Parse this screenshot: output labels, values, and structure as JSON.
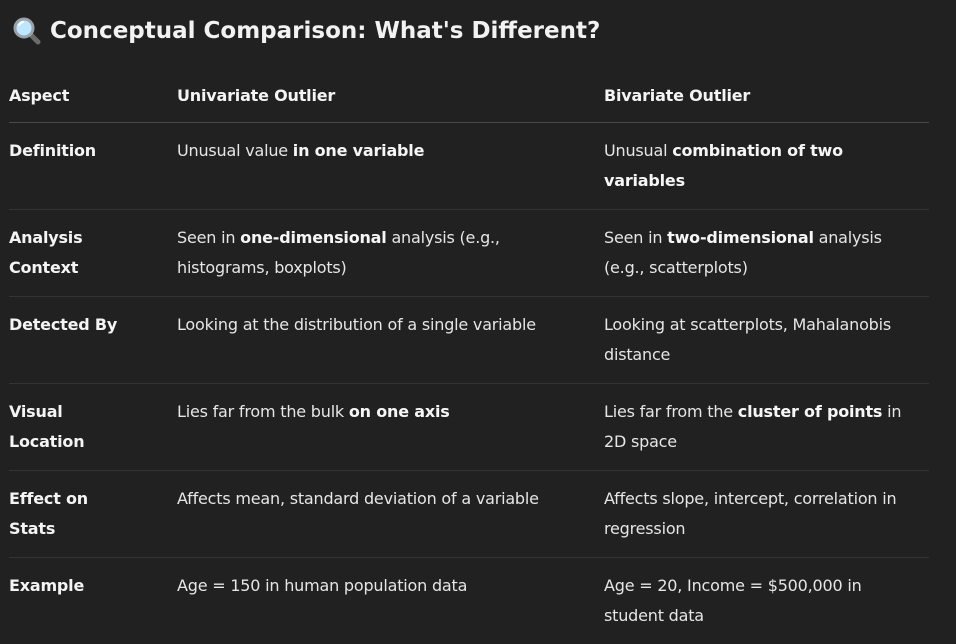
{
  "heading": {
    "icon": "magnifying-glass-icon",
    "title": "Conceptual Comparison: What's Different?"
  },
  "table": {
    "headers": [
      "Aspect",
      "Univariate Outlier",
      "Bivariate Outlier"
    ],
    "rows": [
      {
        "aspect": "Definition",
        "univariate": {
          "pre": "Unusual value ",
          "bold": "in one variable",
          "post": ""
        },
        "bivariate": {
          "pre": "Unusual ",
          "bold": "combination of two variables",
          "post": ""
        }
      },
      {
        "aspect": "Analysis Context",
        "univariate": {
          "pre": "Seen in ",
          "bold": "one-dimensional",
          "post": " analysis (e.g., histograms, boxplots)"
        },
        "bivariate": {
          "pre": "Seen in ",
          "bold": "two-dimensional",
          "post": " analysis (e.g., scatterplots)"
        }
      },
      {
        "aspect": "Detected By",
        "univariate": {
          "pre": "Looking at the distribution of a single variable",
          "bold": "",
          "post": ""
        },
        "bivariate": {
          "pre": "Looking at scatterplots, Mahalanobis distance",
          "bold": "",
          "post": ""
        }
      },
      {
        "aspect": "Visual Location",
        "univariate": {
          "pre": "Lies far from the bulk ",
          "bold": "on one axis",
          "post": ""
        },
        "bivariate": {
          "pre": "Lies far from the ",
          "bold": "cluster of points",
          "post": " in 2D space"
        }
      },
      {
        "aspect": "Effect on Stats",
        "univariate": {
          "pre": "Affects mean, standard deviation of a variable",
          "bold": "",
          "post": ""
        },
        "bivariate": {
          "pre": "Affects slope, intercept, correlation in regression",
          "bold": "",
          "post": ""
        }
      },
      {
        "aspect": "Example",
        "univariate": {
          "pre": "Age = 150 in human population data",
          "bold": "",
          "post": ""
        },
        "bivariate": {
          "pre": "Age = 20, Income = $500,000 in student data",
          "bold": "",
          "post": ""
        }
      }
    ]
  }
}
